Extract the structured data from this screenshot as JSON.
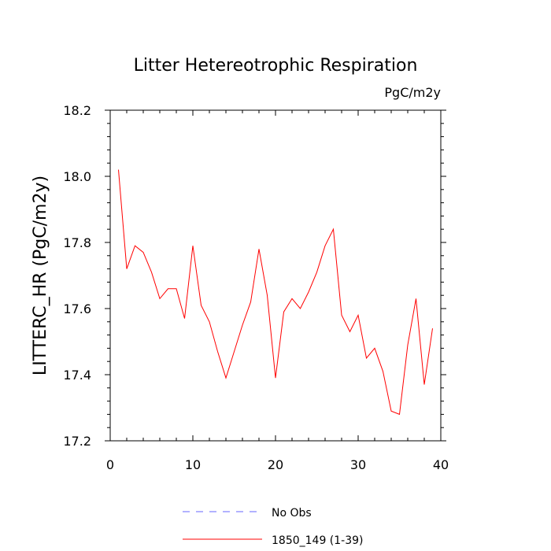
{
  "chart_data": {
    "type": "line",
    "title": "Litter Hetereotrophic Respiration",
    "units_label": "PgC/m2y",
    "xlabel": "",
    "ylabel": "LITTERC_HR  (PgC/m2y)",
    "xlim": [
      0,
      40
    ],
    "ylim": [
      17.2,
      18.2
    ],
    "x_ticks": [
      0,
      10,
      20,
      30,
      40
    ],
    "x_tick_labels": [
      "0",
      "10",
      "20",
      "30",
      "40"
    ],
    "y_ticks": [
      17.2,
      17.4,
      17.6,
      17.8,
      18.0,
      18.2
    ],
    "y_tick_labels": [
      "17.2",
      "17.4",
      "17.6",
      "17.8",
      "18.0",
      "18.2"
    ],
    "grid": false,
    "legend_position": "bottom",
    "series": [
      {
        "name": "1850_149 (1-39)",
        "color": "#ff0000",
        "dash": "solid",
        "x": [
          1,
          2,
          3,
          4,
          5,
          6,
          7,
          8,
          9,
          10,
          11,
          12,
          13,
          14,
          15,
          16,
          17,
          18,
          19,
          20,
          21,
          22,
          23,
          24,
          25,
          26,
          27,
          28,
          29,
          30,
          31,
          32,
          33,
          34,
          35,
          36,
          37,
          38,
          39
        ],
        "values": [
          18.02,
          17.72,
          17.79,
          17.77,
          17.71,
          17.63,
          17.66,
          17.66,
          17.57,
          17.79,
          17.61,
          17.56,
          17.47,
          17.39,
          17.47,
          17.55,
          17.62,
          17.78,
          17.64,
          17.39,
          17.59,
          17.63,
          17.6,
          17.65,
          17.71,
          17.79,
          17.84,
          17.58,
          17.53,
          17.58,
          17.45,
          17.48,
          17.41,
          17.29,
          17.28,
          17.49,
          17.63,
          17.37,
          17.54
        ]
      }
    ],
    "legend": [
      {
        "label": "No Obs",
        "color": "#6666ff",
        "dash": "dashed"
      },
      {
        "label": "1850_149 (1-39)",
        "color": "#ff0000",
        "dash": "solid"
      }
    ]
  }
}
